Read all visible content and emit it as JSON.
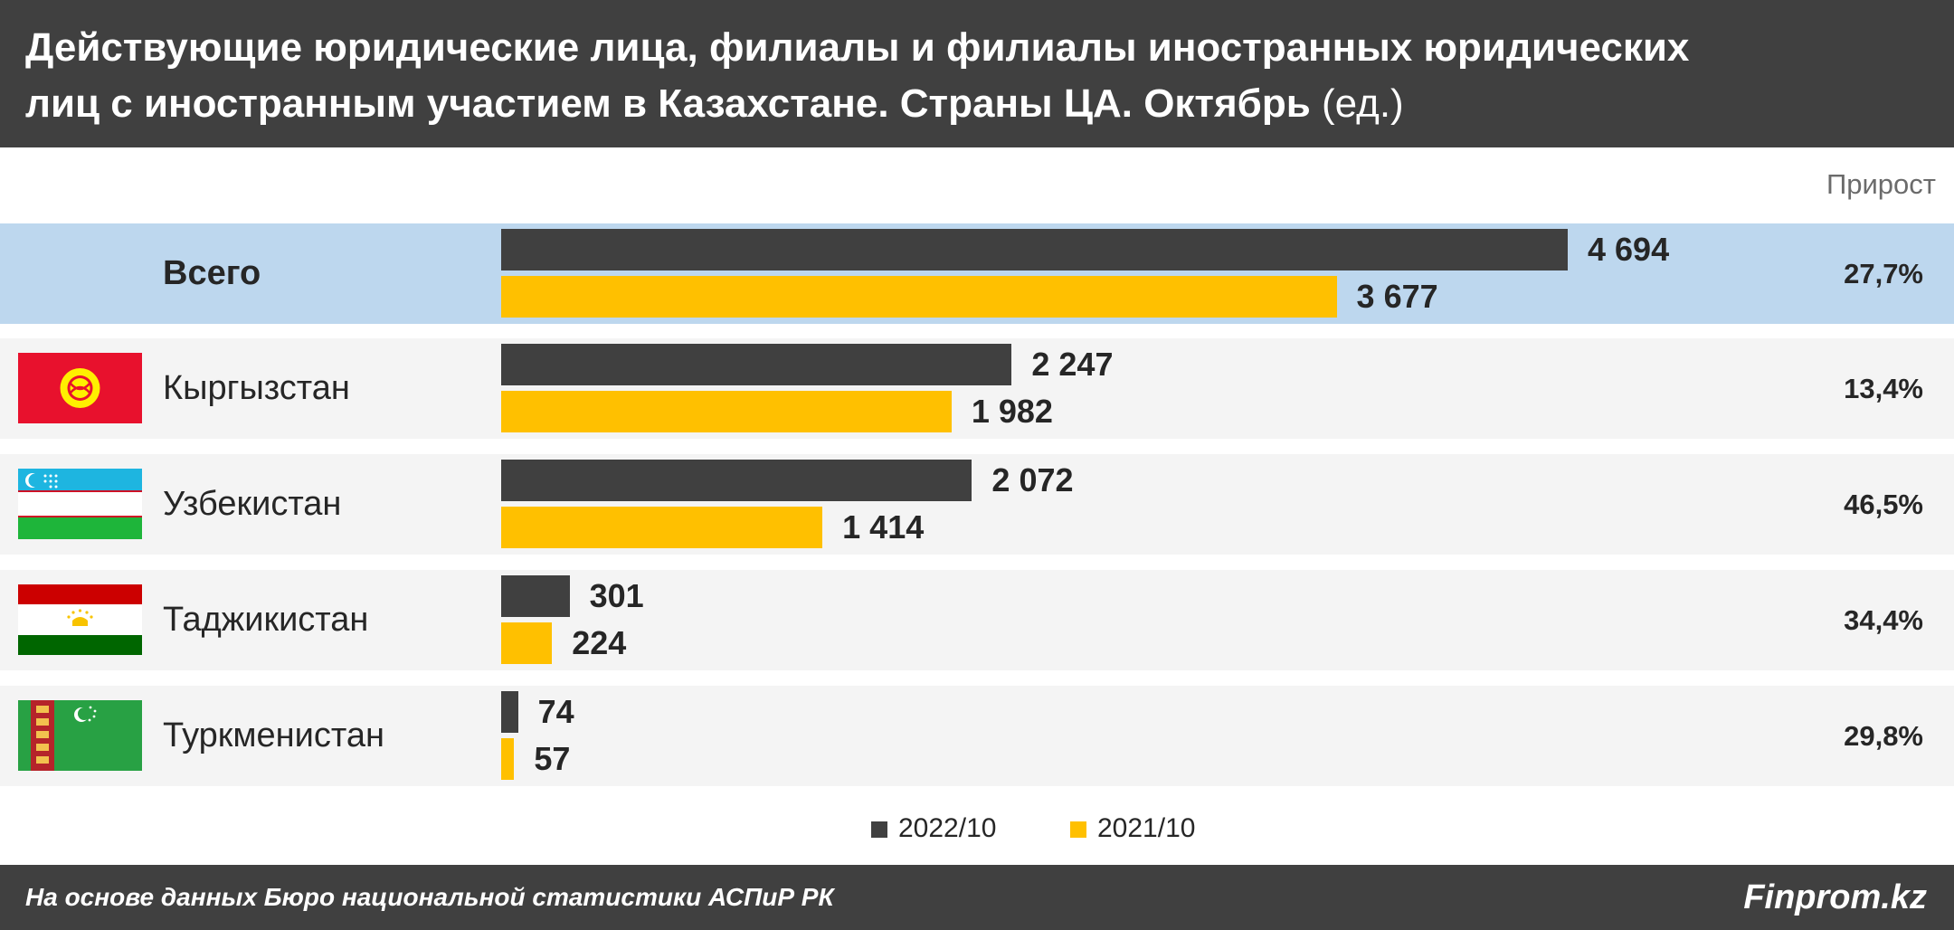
{
  "header": {
    "title_line1": "Действующие юридические лица, филиалы и филиалы иностранных юридических",
    "title_line2": "лиц с иностранным участием в Казахстане. Страны ЦА. Октябрь",
    "unit": "(ед.)"
  },
  "growth_header": "Прирост",
  "colors": {
    "current": "#404040",
    "previous": "#ffc000",
    "total_row": "#bdd7ee",
    "row": "#f4f4f4"
  },
  "chart_data": {
    "type": "bar",
    "orientation": "horizontal",
    "title": "Действующие юридические лица, филиалы и филиалы иностранных юридических лиц с иностранным участием в Казахстане. Страны ЦА. Октябрь (ед.)",
    "categories": [
      "Всего",
      "Кыргызстан",
      "Узбекистан",
      "Таджикистан",
      "Туркменистан"
    ],
    "series": [
      {
        "name": "2022/10",
        "values": [
          4694,
          2247,
          2072,
          301,
          74
        ],
        "labels": [
          "4 694",
          "2 247",
          "2 072",
          "301",
          "74"
        ]
      },
      {
        "name": "2021/10",
        "values": [
          3677,
          1982,
          1414,
          224,
          57
        ],
        "labels": [
          "3 677",
          "1 982",
          "1 414",
          "224",
          "57"
        ]
      }
    ],
    "growth": [
      "27,7%",
      "13,4%",
      "46,5%",
      "34,4%",
      "29,8%"
    ],
    "flags": [
      "",
      "kyrgyzstan-flag-icon",
      "uzbekistan-flag-icon",
      "tajikistan-flag-icon",
      "turkmenistan-flag-icon"
    ],
    "xlim": [
      0,
      4694
    ],
    "grid": false,
    "legend": "bottom-center"
  },
  "legend": {
    "current": "2022/10",
    "previous": "2021/10"
  },
  "footer": {
    "source": "На основе данных Бюро национальной статистики АСПиР РК",
    "brand": "Finprom.kz"
  }
}
